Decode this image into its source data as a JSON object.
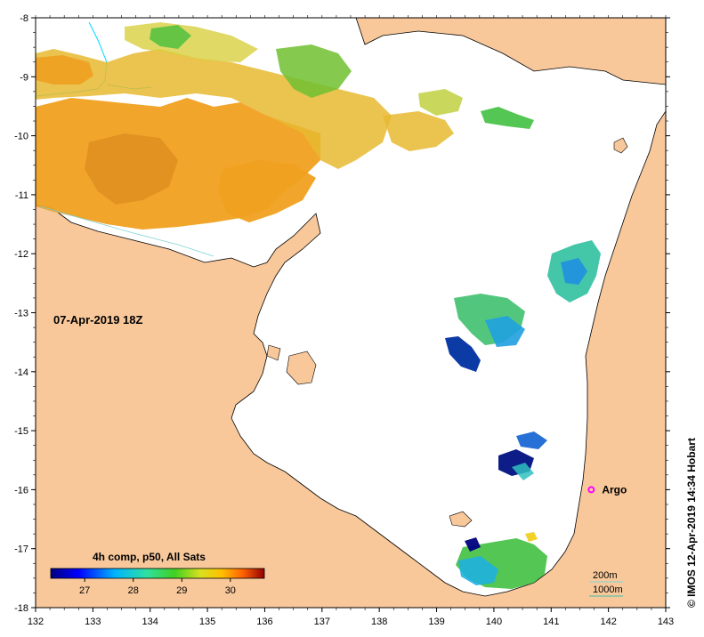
{
  "map": {
    "timestamp": "07-Apr-2019 18Z",
    "credit": "© IMOS 12-Apr-2019 14:34 Hobart",
    "lon_ticks": [
      "132",
      "133",
      "134",
      "135",
      "136",
      "137",
      "138",
      "139",
      "140",
      "141",
      "142",
      "143"
    ],
    "lat_ticks": [
      "-8",
      "-9",
      "-10",
      "-11",
      "-12",
      "-13",
      "-14",
      "-15",
      "-16",
      "-17",
      "-18"
    ],
    "extent": {
      "lon_min": 132,
      "lon_max": 143,
      "lat_min": -18,
      "lat_max": -8
    },
    "colorbar": {
      "title": "4h comp, p50, All Sats",
      "ticks": [
        "27",
        "28",
        "29",
        "30"
      ],
      "range": [
        26.3,
        30.7
      ]
    },
    "argo": {
      "label": "Argo",
      "lon": 141.7,
      "lat": -16.0,
      "color": "#ff00ff"
    },
    "isobath_legend": [
      {
        "label": "200m",
        "color": "#7fd3d3"
      },
      {
        "label": "1000m",
        "color": "#3cc0a8"
      }
    ],
    "colors": {
      "land": "#f8c89b",
      "water": "#ffffff",
      "river": "#00d8ff"
    }
  }
}
